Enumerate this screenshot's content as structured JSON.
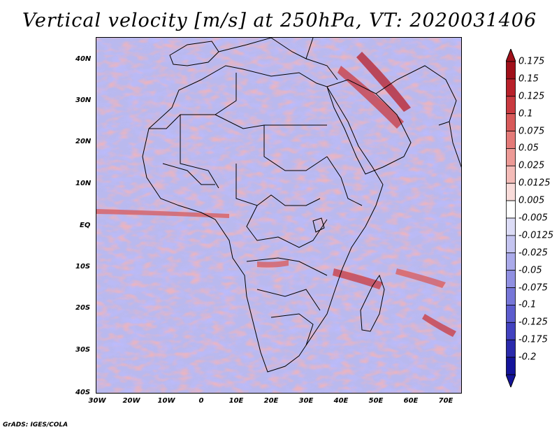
{
  "title": "Vertical velocity [m/s] at 250hPa, VT: 2020031406",
  "credit": "GrADS: IGES/COLA",
  "map": {
    "lat_labels": [
      "40N",
      "30N",
      "20N",
      "10N",
      "EQ",
      "10S",
      "20S",
      "30S",
      "40S"
    ],
    "lon_labels": [
      "30W",
      "20W",
      "10W",
      "0",
      "10E",
      "20E",
      "30E",
      "40E",
      "50E",
      "60E",
      "70E"
    ],
    "lat_range": [
      -40,
      45
    ],
    "lon_range": [
      -30,
      75
    ]
  },
  "colorbar": {
    "labels": [
      "0.175",
      "0.15",
      "0.125",
      "0.1",
      "0.075",
      "0.05",
      "0.025",
      "0.0125",
      "0.005",
      "-0.005",
      "-0.0125",
      "-0.025",
      "-0.05",
      "-0.075",
      "-0.1",
      "-0.125",
      "-0.175",
      "-0.2"
    ],
    "colors": [
      "#a0101a",
      "#b8202a",
      "#c93a40",
      "#d85a5a",
      "#e47a78",
      "#ed9a96",
      "#f4bcb8",
      "#f9dcda",
      "#ffffff",
      "#dcdcf6",
      "#c4c4f0",
      "#aaaaea",
      "#9090e2",
      "#7676d8",
      "#5c5cce",
      "#4242c0",
      "#2a2aac",
      "#14149a"
    ]
  }
}
